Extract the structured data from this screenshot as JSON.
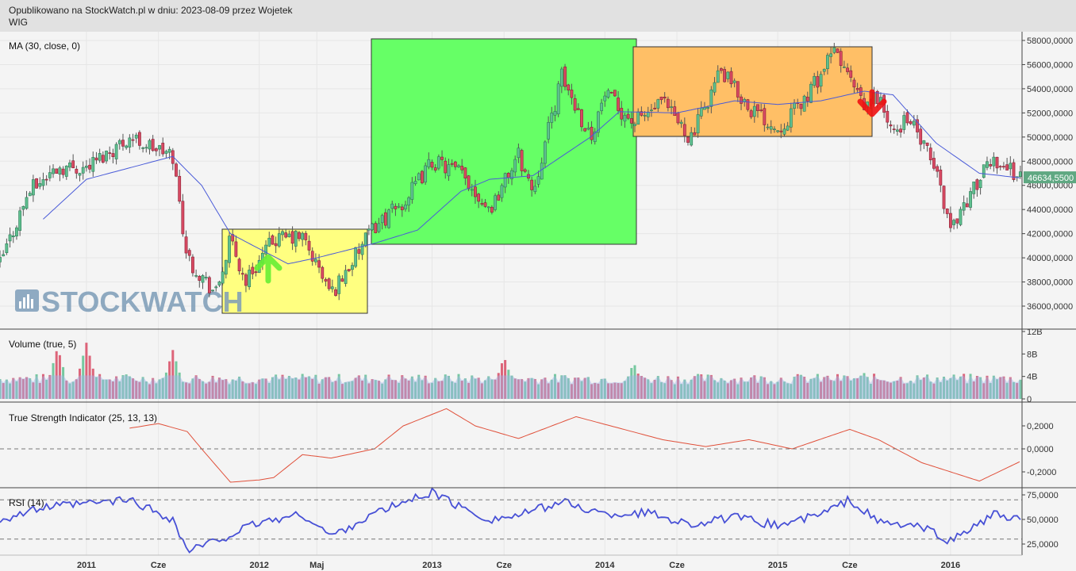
{
  "header": {
    "line1": "Opublikowano na StockWatch.pl w dniu: 2023-08-09 przez Wojetek",
    "line2": "WIG"
  },
  "watermark": "STOCKWATCH",
  "panels": {
    "price_title": "MA (30, close, 0)",
    "volume_title": "Volume (true, 5)",
    "tsi_title": "True Strength Indicator (25, 13, 13)",
    "rsi_title": "RSI (14)"
  },
  "last_price_label": "46634,5500",
  "colors": {
    "up": "#5fbf8f",
    "down": "#d84a63",
    "ma": "#4a5bd8",
    "tsi": "#e0503a",
    "rsi": "#4750d6",
    "last_price_bg": "#5fa882",
    "box_yellow": "#ffff80",
    "box_green": "#66ff66",
    "box_orange": "#ffbf66"
  },
  "chart_data": [
    {
      "type": "candlestick",
      "name": "WIG",
      "ylim": [
        35000,
        58500
      ],
      "yticks": [
        36000,
        38000,
        40000,
        42000,
        44000,
        46000,
        48000,
        50000,
        52000,
        54000,
        56000,
        58000
      ],
      "ytick_labels": [
        "36000,0000",
        "38000,0000",
        "40000,0000",
        "42000,0000",
        "44000,0000",
        "46000,0000",
        "48000,0000",
        "50000,0000",
        "52000,0000",
        "54000,0000",
        "56000,0000",
        "58000,0000"
      ],
      "xtick_labels": [
        "2011",
        "Cze",
        "2012",
        "Maj",
        "2013",
        "Cze",
        "2014",
        "Cze",
        "2015",
        "Cze",
        "2016"
      ],
      "xtick_dates": [
        "2011-01",
        "2011-06",
        "2012-01",
        "2012-05",
        "2013-01",
        "2013-06",
        "2014-01",
        "2014-06",
        "2015-01",
        "2015-06",
        "2016-01"
      ],
      "x_range": [
        "2010-07",
        "2016-07"
      ],
      "keypoints": [
        [
          "2010-07",
          39500
        ],
        [
          "2010-09",
          45500
        ],
        [
          "2010-11",
          47500
        ],
        [
          "2011-01",
          47500
        ],
        [
          "2011-04",
          50000
        ],
        [
          "2011-07",
          48400
        ],
        [
          "2011-08",
          40000
        ],
        [
          "2011-10",
          37000
        ],
        [
          "2011-11",
          41500
        ],
        [
          "2011-12",
          38000
        ],
        [
          "2012-02",
          41500
        ],
        [
          "2012-04",
          41700
        ],
        [
          "2012-06",
          37000
        ],
        [
          "2012-09",
          42600
        ],
        [
          "2012-11",
          44500
        ],
        [
          "2013-01",
          48000
        ],
        [
          "2013-03",
          47000
        ],
        [
          "2013-05",
          44000
        ],
        [
          "2013-07",
          48500
        ],
        [
          "2013-08",
          45500
        ],
        [
          "2013-10",
          55000
        ],
        [
          "2013-12",
          50000
        ],
        [
          "2014-01",
          53500
        ],
        [
          "2014-03",
          51200
        ],
        [
          "2014-05",
          52800
        ],
        [
          "2014-07",
          49900
        ],
        [
          "2014-09",
          55500
        ],
        [
          "2014-11",
          52500
        ],
        [
          "2015-01",
          50700
        ],
        [
          "2015-03",
          53300
        ],
        [
          "2015-05",
          57200
        ],
        [
          "2015-07",
          52300
        ],
        [
          "2015-08",
          53500
        ],
        [
          "2015-09",
          50000
        ],
        [
          "2015-10",
          51800
        ],
        [
          "2015-12",
          47200
        ],
        [
          "2016-01",
          42500
        ],
        [
          "2016-03",
          46500
        ],
        [
          "2016-04",
          48200
        ],
        [
          "2016-06",
          46634
        ]
      ],
      "moving_average": {
        "name": "MA (30, close, 0)",
        "keypoints": [
          [
            "2010-10",
            43200
          ],
          [
            "2011-01",
            46500
          ],
          [
            "2011-07",
            48400
          ],
          [
            "2011-09",
            46000
          ],
          [
            "2011-11",
            42000
          ],
          [
            "2012-03",
            39500
          ],
          [
            "2012-05",
            40000
          ],
          [
            "2012-09",
            41200
          ],
          [
            "2012-12",
            42300
          ],
          [
            "2013-03",
            45500
          ],
          [
            "2013-05",
            46500
          ],
          [
            "2013-08",
            46800
          ],
          [
            "2013-12",
            50000
          ],
          [
            "2014-02",
            52100
          ],
          [
            "2014-06",
            52000
          ],
          [
            "2014-10",
            53000
          ],
          [
            "2015-01",
            52700
          ],
          [
            "2015-04",
            53000
          ],
          [
            "2015-07",
            53800
          ],
          [
            "2015-09",
            53500
          ],
          [
            "2015-12",
            49500
          ],
          [
            "2016-03",
            47000
          ],
          [
            "2016-06",
            46600
          ]
        ]
      },
      "last_value": 46634.55
    },
    {
      "type": "bar",
      "name": "Volume (true, 5)",
      "ylim": [
        0,
        12
      ],
      "yticks": [
        0,
        4,
        8,
        12
      ],
      "ytick_labels": [
        "0",
        "4B",
        "8B",
        "12B"
      ],
      "typical_range_billions": [
        2.5,
        4.5
      ],
      "peaks_billions": [
        [
          "2010-11",
          9.2
        ],
        [
          "2011-01",
          10.0
        ],
        [
          "2011-07",
          8.7
        ],
        [
          "2013-06",
          7.5
        ],
        [
          "2014-03",
          6.5
        ],
        [
          "2015-07",
          4.6
        ]
      ]
    },
    {
      "type": "line",
      "name": "True Strength Indicator (25, 13, 13)",
      "ylim": [
        -0.3,
        0.38
      ],
      "yticks": [
        -0.2,
        0,
        0.2
      ],
      "ytick_labels": [
        "-0,2000",
        "0,0000",
        "0,2000"
      ],
      "reference_line": 0,
      "keypoints": [
        [
          "2011-04",
          0.18
        ],
        [
          "2011-06",
          0.22
        ],
        [
          "2011-08",
          0.15
        ],
        [
          "2011-09",
          0.0
        ],
        [
          "2011-11",
          -0.29
        ],
        [
          "2012-01",
          -0.27
        ],
        [
          "2012-02",
          -0.25
        ],
        [
          "2012-04",
          -0.05
        ],
        [
          "2012-06",
          -0.08
        ],
        [
          "2012-09",
          0.0
        ],
        [
          "2012-11",
          0.2
        ],
        [
          "2013-02",
          0.35
        ],
        [
          "2013-04",
          0.2
        ],
        [
          "2013-07",
          0.09
        ],
        [
          "2013-11",
          0.28
        ],
        [
          "2014-02",
          0.18
        ],
        [
          "2014-05",
          0.08
        ],
        [
          "2014-08",
          0.02
        ],
        [
          "2014-11",
          0.08
        ],
        [
          "2015-02",
          0.0
        ],
        [
          "2015-06",
          0.17
        ],
        [
          "2015-08",
          0.08
        ],
        [
          "2015-11",
          -0.12
        ],
        [
          "2016-03",
          -0.28
        ],
        [
          "2016-06",
          -0.1
        ]
      ]
    },
    {
      "type": "line",
      "name": "RSI (14)",
      "ylim": [
        10,
        80
      ],
      "yticks": [
        25,
        50,
        75
      ],
      "ytick_labels": [
        "25,0000",
        "50,0000",
        "75,0000"
      ],
      "reference_lines": [
        30,
        70
      ],
      "keypoints": [
        [
          "2010-07",
          50
        ],
        [
          "2010-10",
          62
        ],
        [
          "2011-04",
          70
        ],
        [
          "2011-07",
          50
        ],
        [
          "2011-08",
          18
        ],
        [
          "2011-10",
          28
        ],
        [
          "2012-01",
          47
        ],
        [
          "2012-04",
          55
        ],
        [
          "2012-06",
          33
        ],
        [
          "2012-09",
          56
        ],
        [
          "2013-01",
          78
        ],
        [
          "2013-03",
          62
        ],
        [
          "2013-05",
          50
        ],
        [
          "2013-07",
          54
        ],
        [
          "2013-10",
          68
        ],
        [
          "2014-01",
          55
        ],
        [
          "2014-04",
          57
        ],
        [
          "2014-07",
          45
        ],
        [
          "2014-10",
          52
        ],
        [
          "2015-01",
          44
        ],
        [
          "2015-04",
          55
        ],
        [
          "2015-06",
          70
        ],
        [
          "2015-08",
          47
        ],
        [
          "2015-11",
          42
        ],
        [
          "2016-01",
          28
        ],
        [
          "2016-04",
          55
        ],
        [
          "2016-06",
          48
        ]
      ]
    }
  ]
}
